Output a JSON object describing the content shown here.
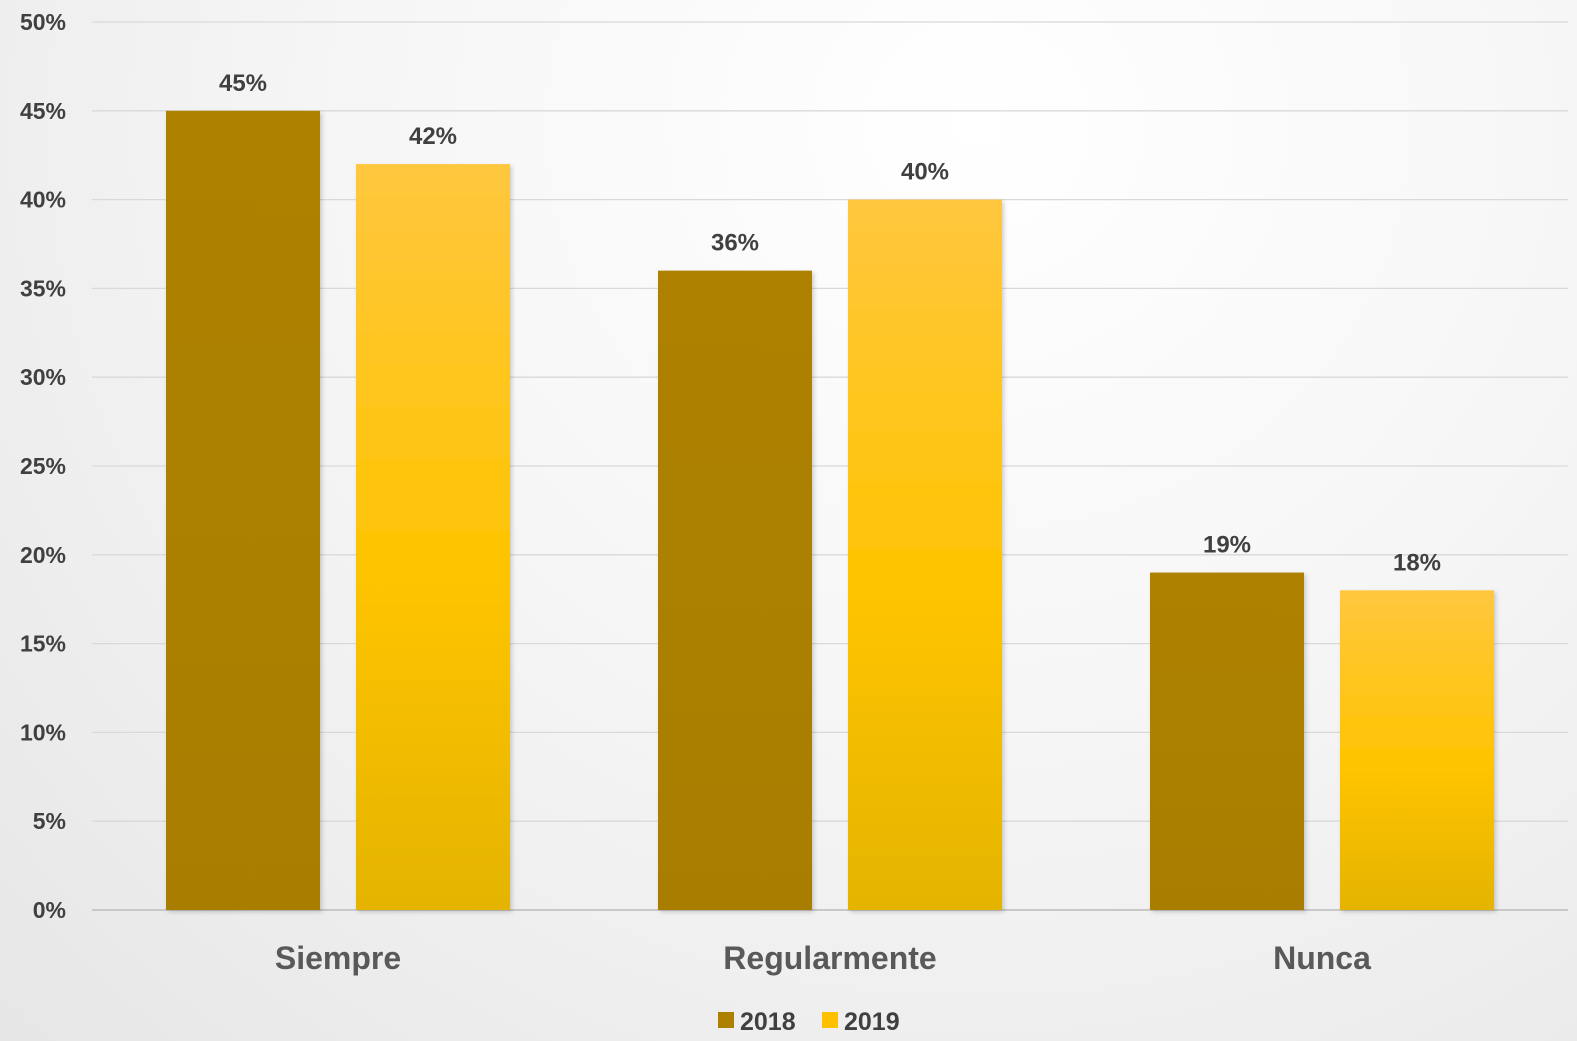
{
  "chart_data": {
    "type": "bar",
    "categories": [
      "Siempre",
      "Regularmente",
      "Nunca"
    ],
    "series": [
      {
        "name": "2018",
        "values": [
          45,
          36,
          19
        ],
        "color": "#AD8000"
      },
      {
        "name": "2019",
        "values": [
          42,
          40,
          18
        ],
        "color": "#FFC000"
      }
    ],
    "ylim": [
      0,
      50
    ],
    "y_ticks": [
      0,
      5,
      10,
      15,
      20,
      25,
      30,
      35,
      40,
      45,
      50
    ],
    "tick_suffix": "%",
    "grid": true,
    "legend": "bottom-center"
  }
}
